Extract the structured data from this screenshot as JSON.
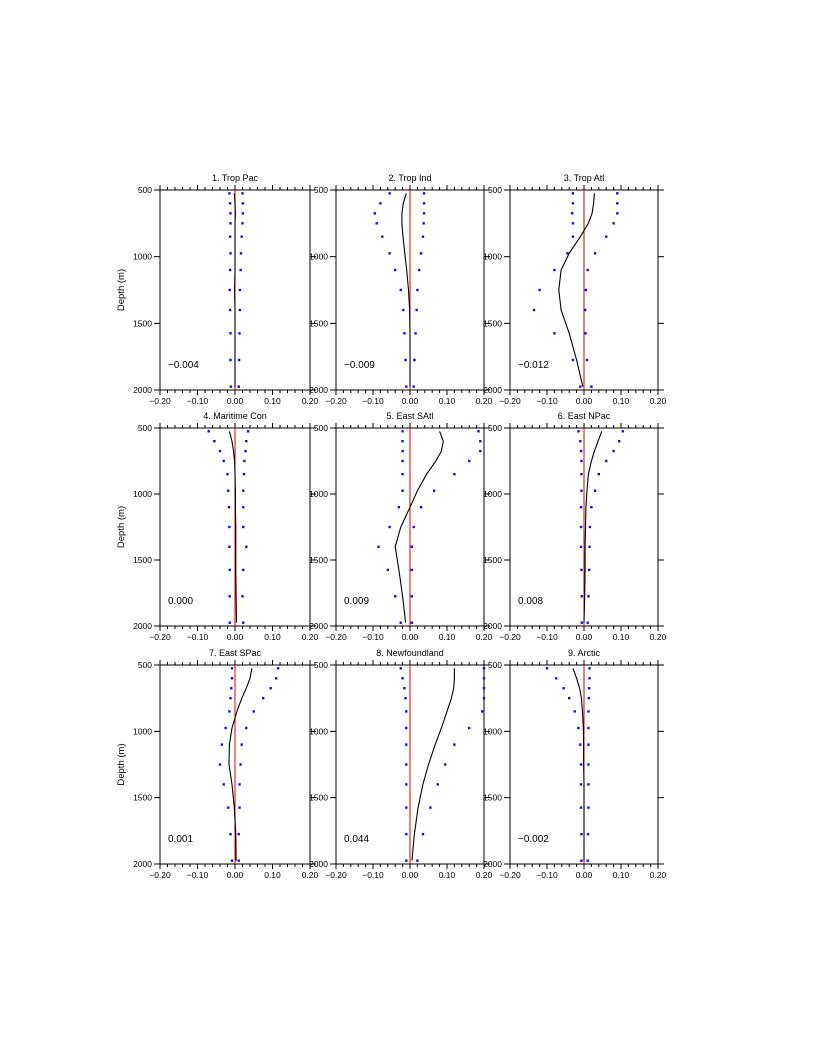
{
  "chart_data": [
    {
      "type": "scatter",
      "title": "1. Trop Pac",
      "ylabel": "Depth (m)",
      "xlim": [
        -0.2,
        0.2
      ],
      "ylim": [
        2000,
        500
      ],
      "x_ticks": [
        "−0.20",
        "−0.10",
        "0.00",
        "0.10",
        "0.20"
      ],
      "y_ticks": [
        "500",
        "1000",
        "1500",
        "2000"
      ],
      "annotation": "−0.004",
      "depth": [
        525,
        600,
        675,
        750,
        850,
        975,
        1100,
        1250,
        1400,
        1575,
        1775,
        1975
      ],
      "mean": [
        -0.002,
        0.0,
        0.001,
        0.0,
        0.0,
        0.0,
        0.0,
        -0.001,
        0.0,
        0.0,
        0.0,
        0.0
      ],
      "lower": [
        -0.015,
        -0.013,
        -0.012,
        -0.012,
        -0.013,
        -0.012,
        -0.013,
        -0.014,
        -0.013,
        -0.012,
        -0.012,
        -0.011
      ],
      "upper": [
        0.02,
        0.021,
        0.021,
        0.02,
        0.018,
        0.016,
        0.015,
        0.013,
        0.013,
        0.012,
        0.011,
        0.01
      ]
    },
    {
      "type": "scatter",
      "title": "2. Trop Ind",
      "ylabel": "",
      "xlim": [
        -0.2,
        0.2
      ],
      "ylim": [
        2000,
        500
      ],
      "x_ticks": [
        "−0.20",
        "−0.10",
        "0.00",
        "0.10",
        "0.20"
      ],
      "y_ticks": [
        "500",
        "1000",
        "1500",
        "2000"
      ],
      "annotation": "−0.009",
      "depth": [
        525,
        600,
        675,
        750,
        850,
        975,
        1100,
        1250,
        1400,
        1575,
        1775,
        1975
      ],
      "mean": [
        -0.01,
        -0.018,
        -0.022,
        -0.022,
        -0.019,
        -0.014,
        -0.009,
        -0.004,
        -0.001,
        0.0,
        0.0,
        0.0
      ],
      "lower": [
        -0.055,
        -0.08,
        -0.095,
        -0.09,
        -0.075,
        -0.055,
        -0.04,
        -0.025,
        -0.018,
        -0.015,
        -0.012,
        -0.01
      ],
      "upper": [
        0.038,
        0.038,
        0.038,
        0.037,
        0.035,
        0.03,
        0.025,
        0.02,
        0.018,
        0.015,
        0.012,
        0.01
      ]
    },
    {
      "type": "scatter",
      "title": "3. Trop Atl",
      "ylabel": "",
      "xlim": [
        -0.2,
        0.2
      ],
      "ylim": [
        2000,
        500
      ],
      "x_ticks": [
        "−0.20",
        "−0.10",
        "0.00",
        "0.10",
        "0.20"
      ],
      "y_ticks": [
        "500",
        "1000",
        "1500",
        "2000"
      ],
      "annotation": "−0.012",
      "depth": [
        525,
        600,
        675,
        750,
        850,
        975,
        1100,
        1250,
        1400,
        1575,
        1775,
        1975
      ],
      "mean": [
        0.028,
        0.026,
        0.022,
        0.012,
        -0.01,
        -0.04,
        -0.062,
        -0.068,
        -0.062,
        -0.04,
        -0.02,
        -0.003
      ],
      "lower": [
        -0.03,
        -0.03,
        -0.032,
        -0.03,
        -0.03,
        -0.045,
        -0.08,
        -0.12,
        -0.135,
        -0.08,
        -0.03,
        -0.01
      ],
      "upper": [
        0.09,
        0.09,
        0.09,
        0.08,
        0.06,
        0.03,
        0.01,
        0.005,
        0.003,
        0.004,
        0.008,
        0.02
      ]
    },
    {
      "type": "scatter",
      "title": "4. Maritime Con",
      "ylabel": "Depth (m)",
      "xlim": [
        -0.2,
        0.2
      ],
      "ylim": [
        2000,
        500
      ],
      "x_ticks": [
        "−0.20",
        "−0.10",
        "0.00",
        "0.10",
        "0.20"
      ],
      "y_ticks": [
        "500",
        "1000",
        "1500",
        "2000"
      ],
      "annotation": "0.000",
      "depth": [
        525,
        600,
        675,
        750,
        850,
        975,
        1100,
        1250,
        1400,
        1575,
        1775,
        1975
      ],
      "mean": [
        -0.015,
        -0.008,
        -0.004,
        -0.001,
        0.0,
        0.001,
        0.001,
        0.002,
        0.002,
        0.002,
        0.003,
        0.004
      ],
      "lower": [
        -0.07,
        -0.055,
        -0.04,
        -0.03,
        -0.02,
        -0.018,
        -0.016,
        -0.015,
        -0.015,
        -0.014,
        -0.014,
        -0.014
      ],
      "upper": [
        0.035,
        0.03,
        0.028,
        0.025,
        0.024,
        0.022,
        0.022,
        0.022,
        0.03,
        0.022,
        0.02,
        0.022
      ]
    },
    {
      "type": "scatter",
      "title": "5. East SAtl",
      "ylabel": "",
      "xlim": [
        -0.2,
        0.2
      ],
      "ylim": [
        2000,
        500
      ],
      "x_ticks": [
        "−0.20",
        "−0.10",
        "0.00",
        "0.10",
        "0.20"
      ],
      "y_ticks": [
        "500",
        "1000",
        "1500",
        "2000"
      ],
      "annotation": "0.009",
      "depth": [
        525,
        600,
        675,
        750,
        850,
        975,
        1100,
        1250,
        1400,
        1575,
        1775,
        1975
      ],
      "mean": [
        0.08,
        0.09,
        0.085,
        0.07,
        0.045,
        0.02,
        0.0,
        -0.025,
        -0.04,
        -0.03,
        -0.02,
        -0.012
      ],
      "lower": [
        -0.02,
        -0.02,
        -0.02,
        -0.02,
        -0.02,
        -0.02,
        -0.03,
        -0.055,
        -0.085,
        -0.06,
        -0.04,
        -0.025
      ],
      "upper": [
        0.185,
        0.19,
        0.19,
        0.16,
        0.12,
        0.065,
        0.03,
        0.01,
        0.005,
        0.005,
        0.005,
        0.005
      ]
    },
    {
      "type": "scatter",
      "title": "6. East NPac",
      "ylabel": "",
      "xlim": [
        -0.2,
        0.2
      ],
      "ylim": [
        2000,
        500
      ],
      "x_ticks": [
        "−0.20",
        "−0.10",
        "0.00",
        "0.10",
        "0.20"
      ],
      "y_ticks": [
        "500",
        "1000",
        "1500",
        "2000"
      ],
      "annotation": "0.008",
      "depth": [
        525,
        600,
        675,
        750,
        850,
        975,
        1100,
        1250,
        1400,
        1575,
        1775,
        1975
      ],
      "mean": [
        0.048,
        0.038,
        0.028,
        0.02,
        0.012,
        0.008,
        0.005,
        0.004,
        0.003,
        0.003,
        0.002,
        0.0
      ],
      "lower": [
        -0.015,
        -0.01,
        -0.008,
        -0.007,
        -0.007,
        -0.007,
        -0.008,
        -0.008,
        -0.008,
        -0.007,
        -0.006,
        -0.006
      ],
      "upper": [
        0.105,
        0.095,
        0.08,
        0.06,
        0.04,
        0.03,
        0.02,
        0.016,
        0.015,
        0.014,
        0.012,
        0.01
      ]
    },
    {
      "type": "scatter",
      "title": "7. East SPac",
      "ylabel": "Depth (m)",
      "xlim": [
        -0.2,
        0.2
      ],
      "ylim": [
        2000,
        500
      ],
      "x_ticks": [
        "−0.20",
        "−0.10",
        "0.00",
        "0.10",
        "0.20"
      ],
      "y_ticks": [
        "500",
        "1000",
        "1500",
        "2000"
      ],
      "annotation": "0.001",
      "depth": [
        525,
        600,
        675,
        750,
        850,
        975,
        1100,
        1250,
        1400,
        1575,
        1775,
        1975
      ],
      "mean": [
        0.045,
        0.04,
        0.03,
        0.018,
        0.005,
        -0.008,
        -0.015,
        -0.016,
        -0.008,
        -0.002,
        0.002,
        0.003
      ],
      "lower": [
        -0.008,
        -0.008,
        -0.01,
        -0.012,
        -0.015,
        -0.025,
        -0.035,
        -0.04,
        -0.03,
        -0.018,
        -0.012,
        -0.008
      ],
      "upper": [
        0.115,
        0.11,
        0.095,
        0.075,
        0.05,
        0.03,
        0.018,
        0.015,
        0.012,
        0.012,
        0.01,
        0.01
      ]
    },
    {
      "type": "scatter",
      "title": "8. Newfoundland",
      "ylabel": "",
      "xlim": [
        -0.2,
        0.2
      ],
      "ylim": [
        2000,
        500
      ],
      "x_ticks": [
        "−0.20",
        "−0.10",
        "0.00",
        "0.10",
        "0.20"
      ],
      "y_ticks": [
        "500",
        "1000",
        "1500",
        "2000"
      ],
      "annotation": "0.044",
      "depth": [
        525,
        600,
        675,
        750,
        850,
        975,
        1100,
        1250,
        1400,
        1575,
        1775,
        1975
      ],
      "mean": [
        0.12,
        0.12,
        0.118,
        0.112,
        0.1,
        0.085,
        0.068,
        0.05,
        0.035,
        0.022,
        0.012,
        0.005
      ],
      "lower": [
        -0.025,
        -0.02,
        -0.015,
        -0.012,
        -0.01,
        -0.01,
        -0.01,
        -0.01,
        -0.01,
        -0.01,
        -0.01,
        -0.01
      ],
      "upper": [
        0.2,
        0.2,
        0.2,
        0.2,
        0.195,
        0.16,
        0.12,
        0.095,
        0.075,
        0.055,
        0.035,
        0.02
      ]
    },
    {
      "type": "scatter",
      "title": "9. Arctic",
      "ylabel": "",
      "xlim": [
        -0.2,
        0.2
      ],
      "ylim": [
        2000,
        500
      ],
      "x_ticks": [
        "−0.20",
        "−0.10",
        "0.00",
        "0.10",
        "0.20"
      ],
      "y_ticks": [
        "500",
        "1000",
        "1500",
        "2000"
      ],
      "annotation": "−0.002",
      "depth": [
        525,
        600,
        675,
        750,
        850,
        975,
        1100,
        1250,
        1400,
        1575,
        1775,
        1975
      ],
      "mean": [
        -0.03,
        -0.02,
        -0.012,
        -0.007,
        -0.004,
        -0.002,
        -0.001,
        -0.001,
        0.0,
        0.0,
        0.0,
        0.0
      ],
      "lower": [
        -0.1,
        -0.075,
        -0.055,
        -0.04,
        -0.025,
        -0.015,
        -0.01,
        -0.008,
        -0.008,
        -0.008,
        -0.007,
        -0.007
      ],
      "upper": [
        0.015,
        0.015,
        0.014,
        0.013,
        0.012,
        0.012,
        0.012,
        0.012,
        0.012,
        0.012,
        0.011,
        0.01
      ]
    }
  ]
}
